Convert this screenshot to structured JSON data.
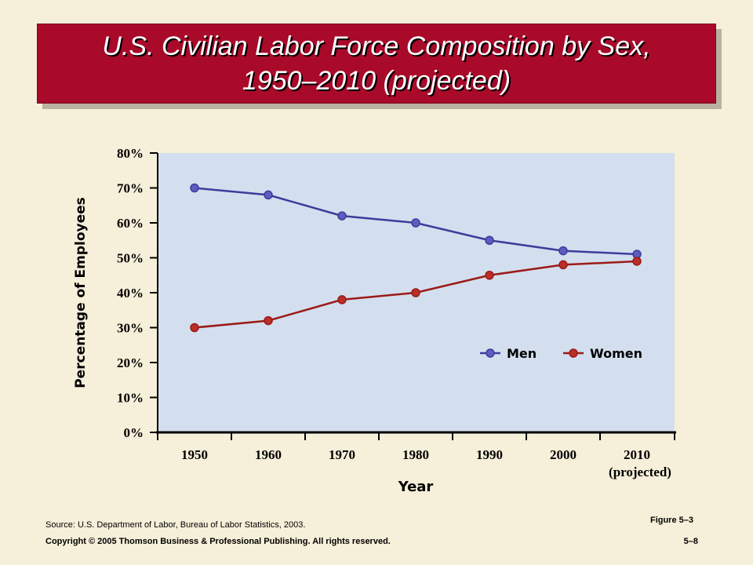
{
  "slide": {
    "title_line1": "U.S. Civilian Labor Force Composition by Sex,",
    "title_line2": "1950–2010 (projected)",
    "source": "Source: U.S. Department of Labor, Bureau of Labor Statistics, 2003.",
    "figure_label": "Figure 5–3",
    "copyright": "Copyright © 2005 Thomson Business & Professional Publishing. All rights reserved.",
    "page_number": "5–8"
  },
  "colors": {
    "background": "#f6efd9",
    "banner": "#a90a2a",
    "plot_area": "#d3dfee",
    "men": "#3d3c9c",
    "women": "#9c1a18"
  },
  "chart_data": {
    "type": "line",
    "title": "",
    "xlabel": "Year",
    "ylabel": "Percentage of Employees",
    "categories": [
      "1950",
      "1960",
      "1970",
      "1980",
      "1990",
      "2000",
      "2010"
    ],
    "category_sublabels": [
      "",
      "",
      "",
      "",
      "",
      "",
      "(projected)"
    ],
    "yticks": [
      "0%",
      "10%",
      "20%",
      "30%",
      "40%",
      "50%",
      "60%",
      "70%",
      "80%"
    ],
    "ylim": [
      0,
      80
    ],
    "grid": false,
    "legend_position": "lower-right",
    "series": [
      {
        "name": "Men",
        "color": "#3d3c9c",
        "marker_fill": "#5e5cbf",
        "values": [
          70,
          68,
          62,
          60,
          55,
          52,
          51
        ]
      },
      {
        "name": "Women",
        "color": "#9c1a18",
        "marker_fill": "#b83028",
        "values": [
          30,
          32,
          38,
          40,
          45,
          48,
          49
        ]
      }
    ]
  }
}
